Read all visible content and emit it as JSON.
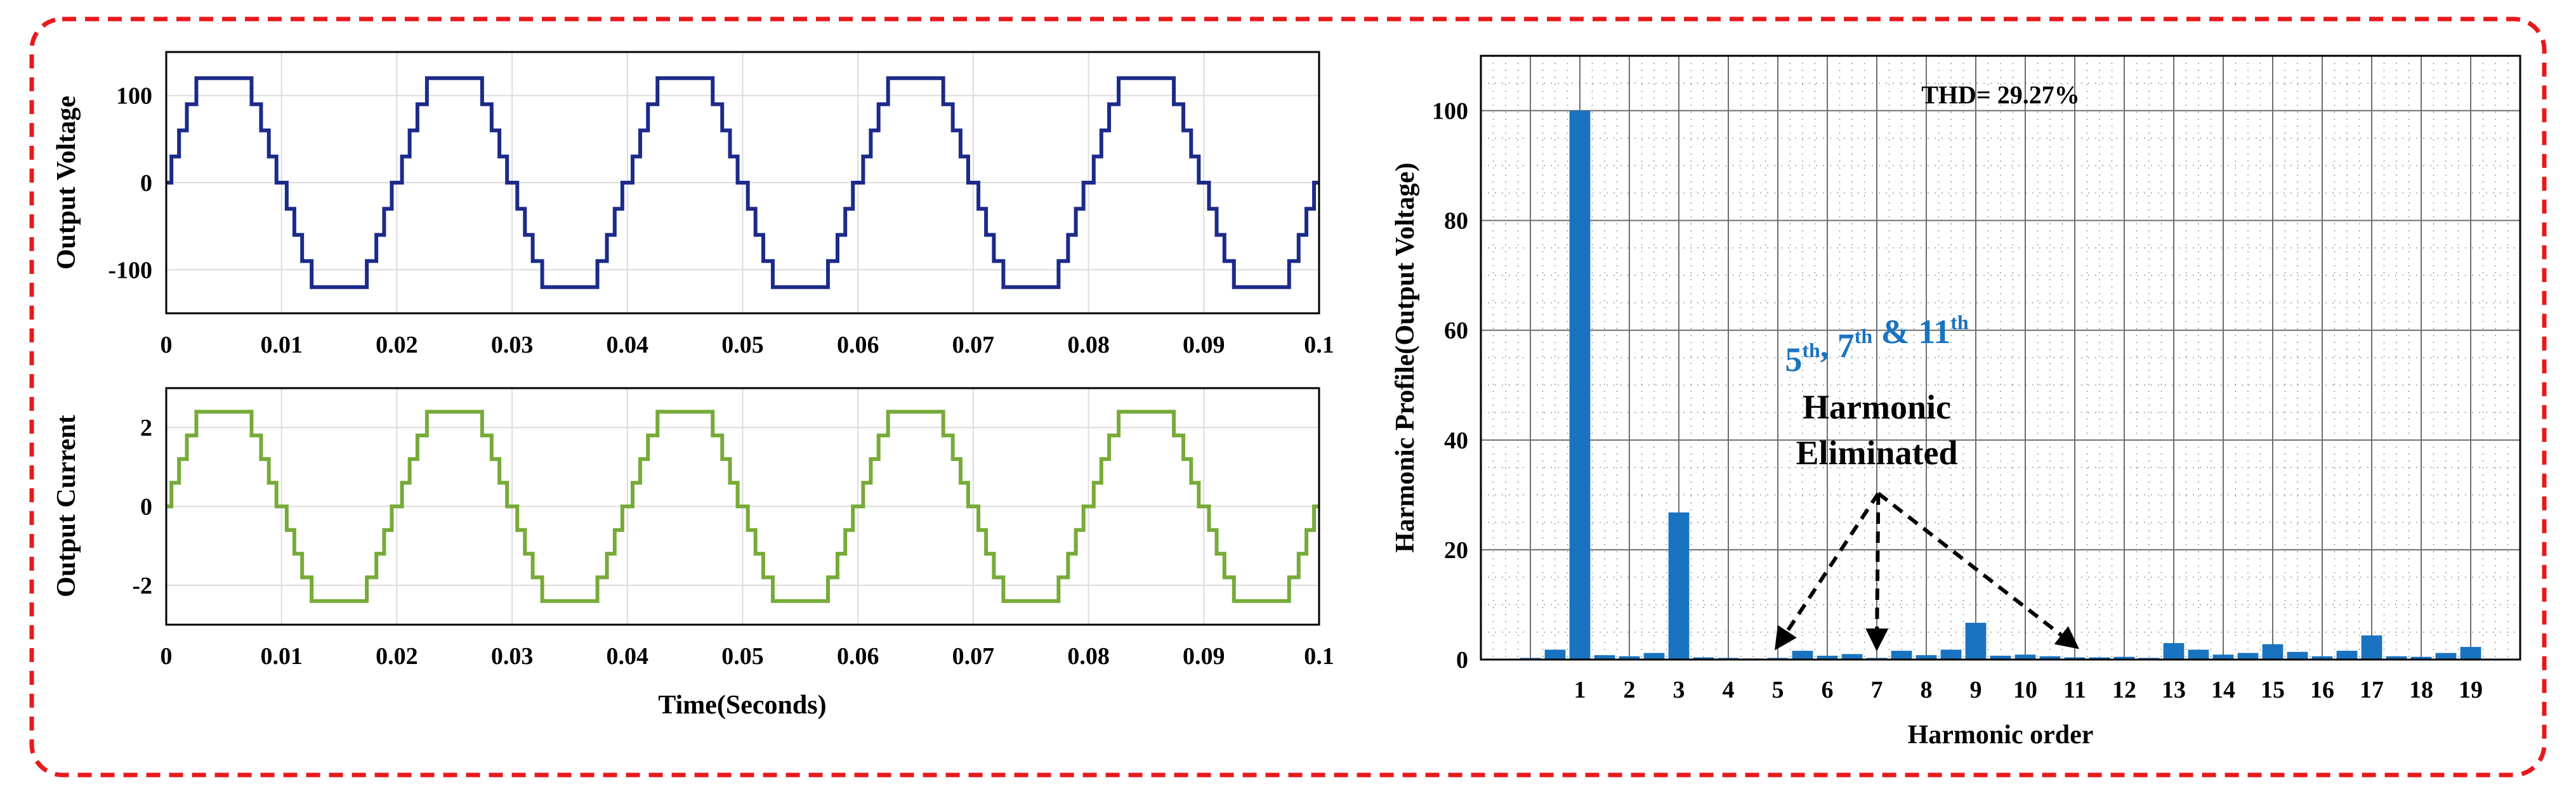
{
  "colors": {
    "border": "#e8191b",
    "voltage": "#1c2a8a",
    "current": "#76ab38",
    "bars": "#1a73c0",
    "annotation": "#1a73c0",
    "arrow": "#000000"
  },
  "chart_data": [
    {
      "type": "line",
      "id": "voltage",
      "ylabel": "Output Voltage",
      "xlabel": "",
      "xlim": [
        0,
        0.1
      ],
      "ylim": [
        -150,
        150
      ],
      "xticks": [
        "0",
        "0.01",
        "0.02",
        "0.03",
        "0.04",
        "0.05",
        "0.06",
        "0.07",
        "0.08",
        "0.09",
        "0.1"
      ],
      "yticks": [
        "100",
        "0",
        "-100"
      ],
      "ytick_values": [
        100,
        0,
        -100
      ],
      "grid": true,
      "waveform": {
        "kind": "staircase",
        "period": 0.02,
        "step_amplitude": 30,
        "levels": 4,
        "switching_angles_deg": [
          8,
          20,
          32,
          47
        ],
        "duration": 0.1
      }
    },
    {
      "type": "line",
      "id": "current",
      "ylabel": "Output Current",
      "xlabel": "Time(Seconds)",
      "xlim": [
        0,
        0.1
      ],
      "ylim": [
        -3,
        3
      ],
      "xticks": [
        "0",
        "0.01",
        "0.02",
        "0.03",
        "0.04",
        "0.05",
        "0.06",
        "0.07",
        "0.08",
        "0.09",
        "0.1"
      ],
      "yticks": [
        "2",
        "0",
        "-2"
      ],
      "ytick_values": [
        2,
        0,
        -2
      ],
      "grid": true,
      "waveform": {
        "kind": "staircase",
        "period": 0.02,
        "step_amplitude": 0.6,
        "levels": 4,
        "switching_angles_deg": [
          8,
          20,
          32,
          47
        ],
        "duration": 0.1
      }
    },
    {
      "type": "bar",
      "id": "harmonics",
      "title": "THD= 29.27%",
      "ylabel": "Harmonic Profile(Output Voltage)",
      "xlabel": "Harmonic order",
      "ylim": [
        0,
        110
      ],
      "yticks": [
        0,
        20,
        40,
        60,
        80,
        100
      ],
      "xtick_labels": [
        "1",
        "2",
        "3",
        "4",
        "5",
        "6",
        "7",
        "8",
        "9",
        "10",
        "11",
        "12",
        "13",
        "14",
        "15",
        "16",
        "17",
        "18",
        "19"
      ],
      "x": [
        0,
        0.5,
        1,
        1.5,
        2,
        2.5,
        3,
        3.5,
        4,
        4.5,
        5,
        5.5,
        6,
        6.5,
        7,
        7.5,
        8,
        8.5,
        9,
        9.5,
        10,
        10.5,
        11,
        11.5,
        12,
        12.5,
        13,
        13.5,
        14,
        14.5,
        15,
        15.5,
        16,
        16.5,
        17,
        17.5,
        18,
        18.5,
        19
      ],
      "values": [
        0.3,
        1.8,
        100,
        0.8,
        0.6,
        1.2,
        26.8,
        0.4,
        0.3,
        0.2,
        0.3,
        1.6,
        0.7,
        1.0,
        0.3,
        1.6,
        0.8,
        1.8,
        6.7,
        0.7,
        0.9,
        0.6,
        0.4,
        0.4,
        0.5,
        0.3,
        3.0,
        1.8,
        0.9,
        1.2,
        2.8,
        1.4,
        0.6,
        1.6,
        4.4,
        0.6,
        0.5,
        1.2,
        2.3
      ],
      "grid": true,
      "annotation": {
        "lines": [
          {
            "parts": [
              [
                "5",
                "th"
              ],
              [
                ", 7",
                "th"
              ],
              [
                " & 11",
                "th"
              ]
            ]
          },
          {
            "text": "Harmonic"
          },
          {
            "text": "Eliminated"
          }
        ],
        "targets": [
          5,
          7,
          11
        ]
      }
    }
  ]
}
